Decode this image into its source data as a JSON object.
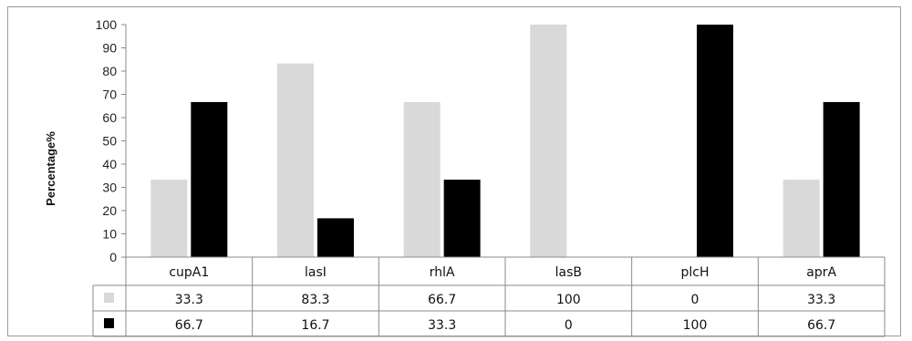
{
  "chart_data": {
    "type": "bar",
    "title": "",
    "xlabel": "",
    "ylabel": "Percentage%",
    "ylim": [
      0,
      100
    ],
    "yticks": [
      0,
      10,
      20,
      30,
      40,
      50,
      60,
      70,
      80,
      90,
      100
    ],
    "categories": [
      "cupA1",
      "lasI",
      "rhlA",
      "lasB",
      "plcH",
      "aprA"
    ],
    "series": [
      {
        "color": "#d9d9d9",
        "values": [
          33.3,
          83.3,
          66.7,
          100,
          0,
          33.3
        ],
        "labels": [
          "33.3",
          "83.3",
          "66.7",
          "100",
          "0",
          "33.3"
        ]
      },
      {
        "color": "#000000",
        "values": [
          66.7,
          16.7,
          33.3,
          0,
          100,
          66.7
        ],
        "labels": [
          "66.7",
          "16.7",
          "33.3",
          "0",
          "100",
          "66.7"
        ]
      }
    ],
    "grid": false,
    "legend": "data-table"
  }
}
